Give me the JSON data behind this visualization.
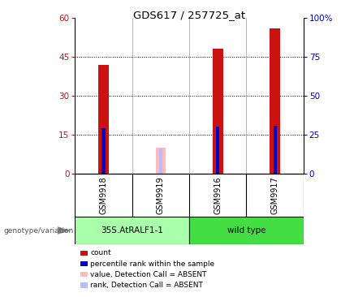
{
  "title": "GDS617 / 257725_at",
  "samples": [
    "GSM9918",
    "GSM9919",
    "GSM9916",
    "GSM9917"
  ],
  "count_values": [
    42,
    null,
    48,
    56
  ],
  "percentile_values": [
    29,
    null,
    30,
    31
  ],
  "absent_value_values": [
    null,
    10,
    null,
    null
  ],
  "absent_rank_values": [
    null,
    16,
    null,
    null
  ],
  "ylim_left": [
    0,
    60
  ],
  "ylim_right": [
    0,
    100
  ],
  "yticks_left": [
    0,
    15,
    30,
    45,
    60
  ],
  "yticks_right": [
    0,
    25,
    50,
    75,
    100
  ],
  "ytick_labels_left": [
    "0",
    "15",
    "30",
    "45",
    "60"
  ],
  "ytick_labels_right": [
    "0",
    "25",
    "50",
    "75",
    "100%"
  ],
  "color_count": "#cc1111",
  "color_percentile": "#0000cc",
  "color_absent_value": "#ffbbbb",
  "color_absent_rank": "#bbbbff",
  "group_names": [
    "35S.AtRALF1-1",
    "wild type"
  ],
  "group_color_1": "#aaffaa",
  "group_color_2": "#44dd44",
  "background_color": "#ffffff",
  "grid_dotted_color": "#000000",
  "legend_items": [
    [
      "#cc1111",
      "count"
    ],
    [
      "#0000cc",
      "percentile rank within the sample"
    ],
    [
      "#ffbbbb",
      "value, Detection Call = ABSENT"
    ],
    [
      "#bbbbff",
      "rank, Detection Call = ABSENT"
    ]
  ]
}
